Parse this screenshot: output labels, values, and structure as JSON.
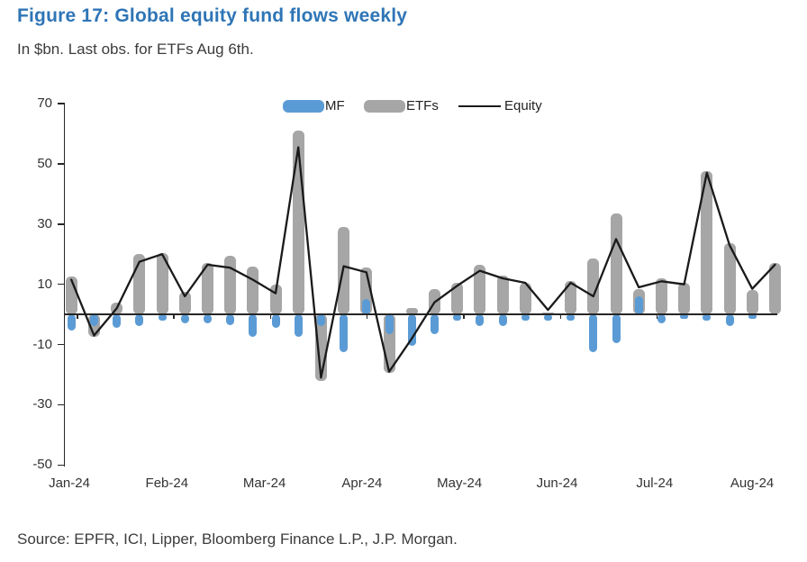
{
  "figure": {
    "title": "Figure 17: Global equity fund flows weekly",
    "subtitle": "In $bn. Last obs. for ETFs Aug 6th.",
    "source": "Source: EPFR, ICI, Lipper, Bloomberg Finance L.P., J.P. Morgan."
  },
  "colors": {
    "title_blue": "#2E75B6",
    "mf_blue": "#5B9BD5",
    "etf_gray": "#A6A6A6",
    "equity_line": "#1A1A1A",
    "axis": "#262626",
    "text": "#3C3C3C"
  },
  "chart_data": {
    "type": "bar",
    "subtype": "overlapped bars with line overlay, weekly observations",
    "title": "Global equity fund flows weekly",
    "units": "$bn",
    "x_tick_labels": [
      "Jan-24",
      "Feb-24",
      "Mar-24",
      "Apr-24",
      "May-24",
      "Jun-24",
      "Jul-24",
      "Aug-24"
    ],
    "n_points": 32,
    "y_ticks": [
      70,
      50,
      30,
      10,
      -10,
      -30,
      -50
    ],
    "ylim": [
      -50,
      70
    ],
    "grid": "off",
    "legend_position": "top-center",
    "series": [
      {
        "name": "ETFs",
        "type": "bar",
        "color": "#A6A6A6",
        "values": [
          12.5,
          -7.5,
          4,
          20,
          20.5,
          7.5,
          17,
          19.5,
          16,
          10,
          61,
          -22,
          29,
          15.5,
          -19.5,
          2,
          8.5,
          10.5,
          16.5,
          13,
          10.5,
          0.5,
          11,
          18.5,
          33.5,
          8.5,
          12,
          10.5,
          47.5,
          23.5,
          8,
          17
        ]
      },
      {
        "name": "MF",
        "type": "bar",
        "color": "#5B9BD5",
        "values": [
          -5.5,
          -4,
          -4.5,
          -4,
          -2,
          -3,
          -3,
          -3.5,
          -7.5,
          -4.5,
          -7.5,
          -4,
          -12.5,
          5,
          -6.5,
          -10.5,
          -6.5,
          -2,
          -4,
          -4,
          -2,
          -2,
          -2,
          -12.5,
          -9.5,
          6,
          -3,
          -1.5,
          -2,
          -4,
          -1.5,
          0
        ]
      },
      {
        "name": "Equity",
        "type": "line",
        "color": "#1A1A1A",
        "values": [
          11.5,
          -7,
          2,
          17.5,
          20,
          6,
          16.5,
          15.5,
          11.5,
          7,
          55.5,
          -21,
          16,
          14,
          -19,
          -8,
          4,
          9.5,
          14.5,
          12,
          10.5,
          1.5,
          10.5,
          6,
          25,
          9,
          11,
          10,
          47,
          23,
          8.5,
          16.5
        ]
      }
    ]
  }
}
